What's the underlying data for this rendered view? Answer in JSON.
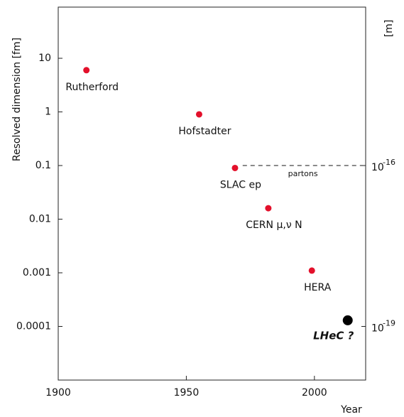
{
  "chart_data": {
    "type": "scatter",
    "y_label": "Resolved dimension [fm]",
    "y2_label": "[m]",
    "x_label": "Year",
    "xlim": [
      1900,
      2020
    ],
    "xticks": [
      1900,
      1950,
      2000
    ],
    "ylim": [
      1e-05,
      90
    ],
    "yticks": [
      10,
      1,
      0.1,
      0.01,
      0.001,
      0.0001
    ],
    "y_log": true,
    "y2lim": [
      1e-20,
      9e-14
    ],
    "y2ticks": [
      {
        "value": 1e-16,
        "label": "10",
        "exponent": "-16"
      },
      {
        "value": 1e-19,
        "label": "10",
        "exponent": "-19"
      }
    ],
    "series": [
      {
        "color": "#e3102b",
        "x": [
          1911,
          1955,
          1969,
          1982,
          1999
        ],
        "values": [
          6,
          0.9,
          0.09,
          0.016,
          0.0011
        ],
        "labels": [
          "Rutherford",
          "Hofstadter",
          "SLAC ep",
          "CERN μ,ν N",
          "HERA"
        ]
      },
      {
        "color": "#000000",
        "x": [
          2013
        ],
        "values": [
          0.00013
        ],
        "labels": [
          "LHeC ?"
        ]
      }
    ],
    "annotation": {
      "text": "partons",
      "x": [
        1972,
        2019
      ],
      "y": 0.1
    }
  }
}
